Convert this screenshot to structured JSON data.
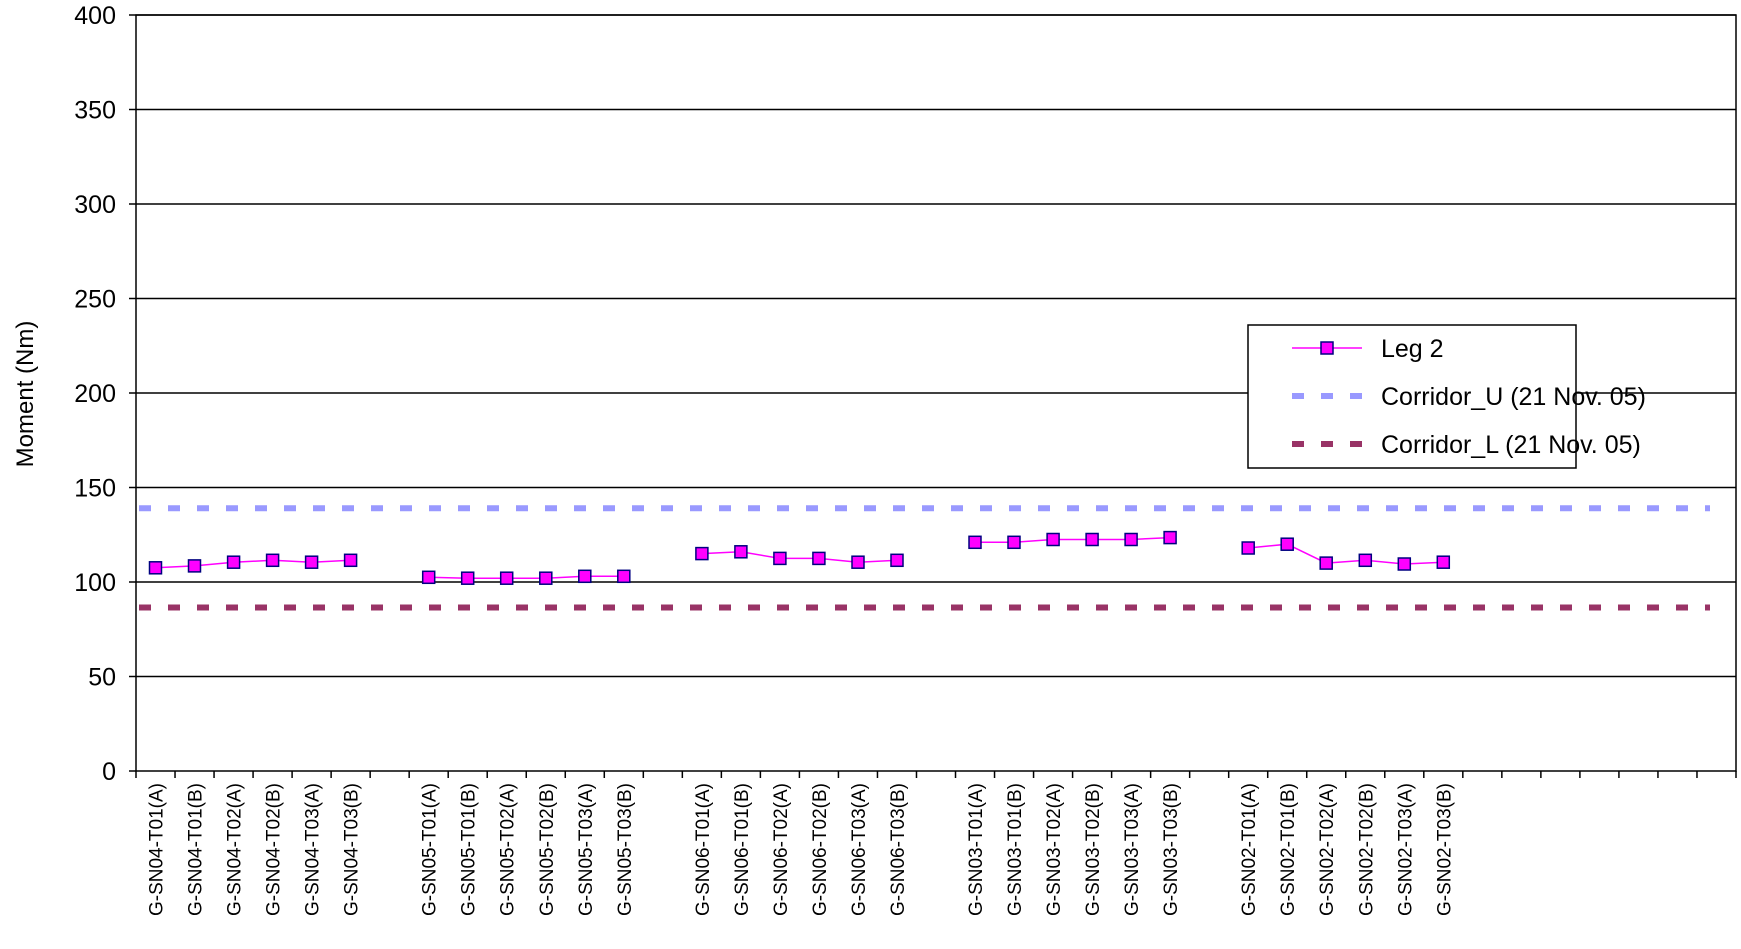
{
  "chart_data": {
    "type": "line",
    "title": "",
    "xlabel": "",
    "ylabel": "Moment (Nm)",
    "ylim": [
      0,
      400
    ],
    "yticks": [
      0,
      50,
      100,
      150,
      200,
      250,
      300,
      350,
      400
    ],
    "grid": "horizontal",
    "legend_position": "right",
    "categories": [
      "G-SN04-T01(A)",
      "G-SN04-T01(B)",
      "G-SN04-T02(A)",
      "G-SN04-T02(B)",
      "G-SN04-T03(A)",
      "G-SN04-T03(B)",
      "",
      "G-SN05-T01(A)",
      "G-SN05-T01(B)",
      "G-SN05-T02(A)",
      "G-SN05-T02(B)",
      "G-SN05-T03(A)",
      "G-SN05-T03(B)",
      "",
      "G-SN06-T01(A)",
      "G-SN06-T01(B)",
      "G-SN06-T02(A)",
      "G-SN06-T02(B)",
      "G-SN06-T03(A)",
      "G-SN06-T03(B)",
      "",
      "G-SN03-T01(A)",
      "G-SN03-T01(B)",
      "G-SN03-T02(A)",
      "G-SN03-T02(B)",
      "G-SN03-T03(A)",
      "G-SN03-T03(B)",
      "",
      "G-SN02-T01(A)",
      "G-SN02-T01(B)",
      "G-SN02-T02(A)",
      "G-SN02-T02(B)",
      "G-SN02-T03(A)",
      "G-SN02-T03(B)",
      "",
      "",
      "",
      "",
      "",
      "",
      ""
    ],
    "series": [
      {
        "name": "Leg 2",
        "style": "line-marker",
        "color": "#ff00ff",
        "marker_color": "#ff00ff",
        "marker_edge": "#000080",
        "values": [
          107.5,
          108.5,
          110.5,
          111.5,
          110.5,
          111.5,
          null,
          102.5,
          102,
          102,
          102,
          103,
          103,
          null,
          115,
          116,
          112.5,
          112.5,
          110.5,
          111.5,
          null,
          121,
          121,
          122.5,
          122.5,
          122.5,
          123.5,
          null,
          118,
          120,
          110,
          111.5,
          109.5,
          110.5,
          null,
          null,
          null,
          null,
          null,
          null,
          null
        ]
      },
      {
        "name": "Corridor_U (21 Nov. 05)",
        "style": "dashed",
        "color": "#9999ff",
        "constant": 139
      },
      {
        "name": "Corridor_L (21 Nov. 05)",
        "style": "dashed",
        "color": "#993366",
        "constant": 86.5
      }
    ]
  }
}
